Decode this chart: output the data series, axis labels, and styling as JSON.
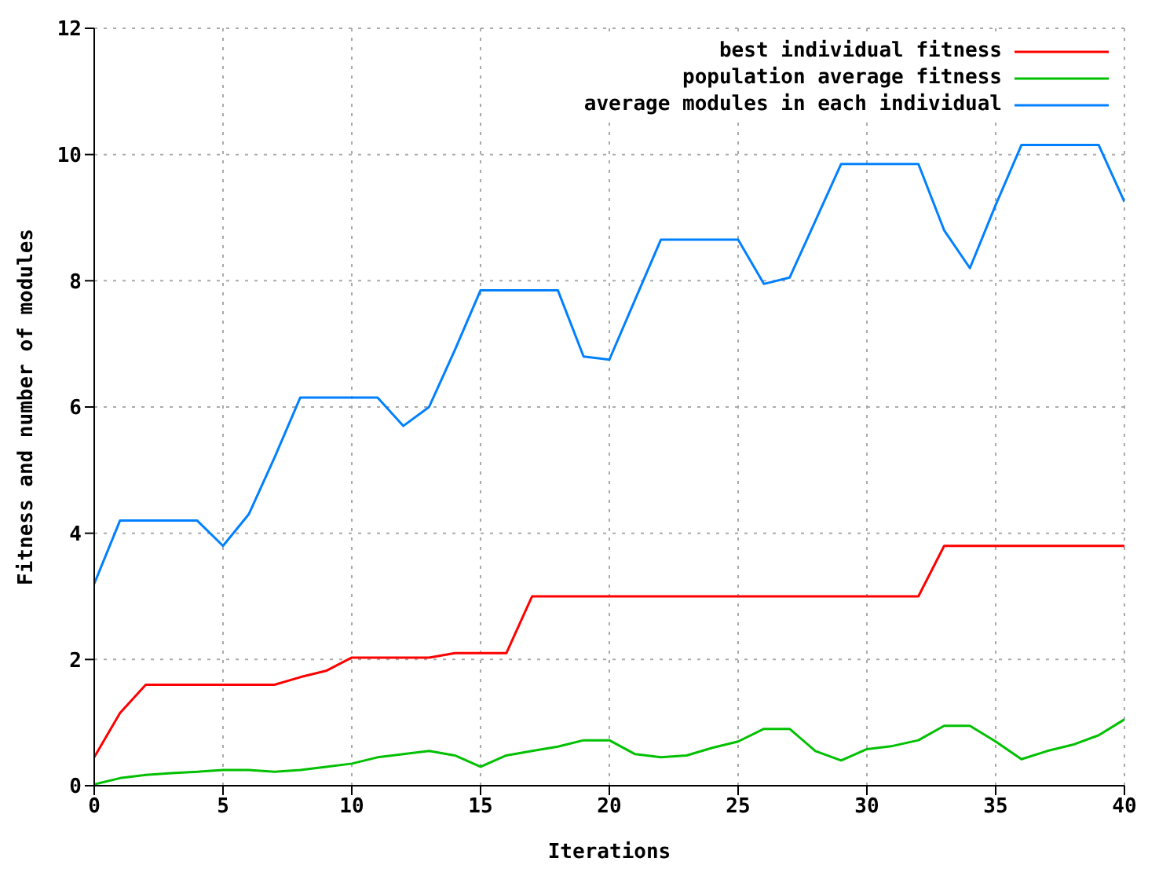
{
  "chart_data": {
    "type": "line",
    "xlabel": "Iterations",
    "ylabel": "Fitness and number of modules",
    "x": [
      0,
      1,
      2,
      3,
      4,
      5,
      6,
      7,
      8,
      9,
      10,
      11,
      12,
      13,
      14,
      15,
      16,
      17,
      18,
      19,
      20,
      21,
      22,
      23,
      24,
      25,
      26,
      27,
      28,
      29,
      30,
      31,
      32,
      33,
      34,
      35,
      36,
      37,
      38,
      39,
      40
    ],
    "series": [
      {
        "name": "best individual fitness",
        "color": "#ff0000",
        "values": [
          0.45,
          1.15,
          1.6,
          1.6,
          1.6,
          1.6,
          1.6,
          1.6,
          1.72,
          1.82,
          2.03,
          2.03,
          2.03,
          2.03,
          2.1,
          2.1,
          2.1,
          3.0,
          3.0,
          3.0,
          3.0,
          3.0,
          3.0,
          3.0,
          3.0,
          3.0,
          3.0,
          3.0,
          3.0,
          3.0,
          3.0,
          3.0,
          3.0,
          3.8,
          3.8,
          3.8,
          3.8,
          3.8,
          3.8,
          3.8,
          3.8
        ]
      },
      {
        "name": "population average fitness",
        "color": "#00c000",
        "values": [
          0.02,
          0.12,
          0.17,
          0.2,
          0.22,
          0.25,
          0.25,
          0.22,
          0.25,
          0.3,
          0.35,
          0.45,
          0.5,
          0.55,
          0.48,
          0.3,
          0.48,
          0.55,
          0.62,
          0.72,
          0.72,
          0.5,
          0.45,
          0.48,
          0.6,
          0.7,
          0.9,
          0.9,
          0.55,
          0.4,
          0.58,
          0.63,
          0.72,
          0.95,
          0.95,
          0.7,
          0.42,
          0.55,
          0.65,
          0.8,
          1.05
        ]
      },
      {
        "name": "average modules in each individual",
        "color": "#0080ff",
        "values": [
          3.2,
          4.2,
          4.2,
          4.2,
          4.2,
          3.8,
          4.3,
          5.2,
          6.15,
          6.15,
          6.15,
          6.15,
          5.7,
          6.0,
          6.9,
          7.85,
          7.85,
          7.85,
          7.85,
          6.8,
          6.75,
          7.7,
          8.65,
          8.65,
          8.65,
          8.65,
          7.95,
          8.05,
          8.95,
          9.85,
          9.85,
          9.85,
          9.85,
          8.8,
          8.2,
          9.2,
          10.15,
          10.15,
          10.15,
          10.15,
          9.25
        ]
      }
    ],
    "xlim": [
      0,
      40
    ],
    "xticks": [
      0,
      5,
      10,
      15,
      20,
      25,
      30,
      35,
      40
    ],
    "ylim": [
      0,
      12
    ],
    "yticks": [
      0,
      2,
      4,
      6,
      8,
      10,
      12
    ],
    "grid": true,
    "legend": "top right",
    "marker": "none",
    "line_style": "solid"
  }
}
